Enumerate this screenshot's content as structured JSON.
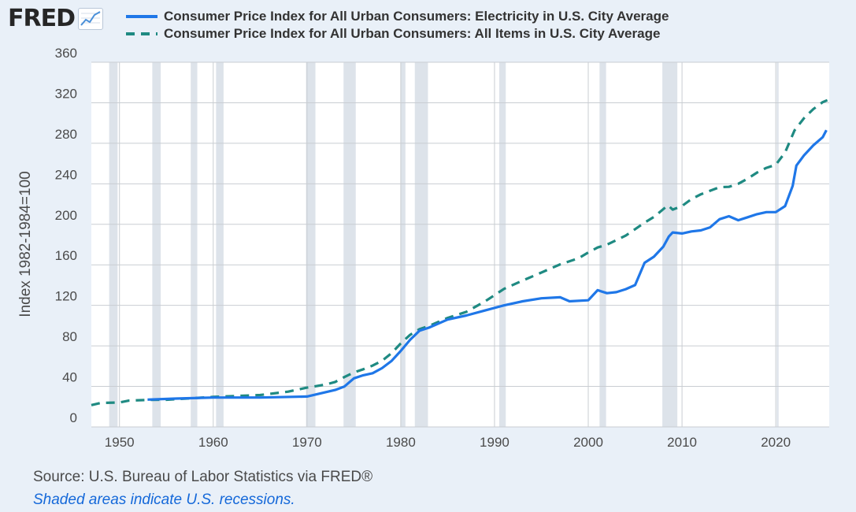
{
  "header": {
    "logo_text": "FRED",
    "logo_icon": "line-chart-icon"
  },
  "colors": {
    "electricity": "#1f77e8",
    "all_items": "#1f8a82",
    "recession_shade": "#dde3ea",
    "grid": "#c9cdd2"
  },
  "chart_data": {
    "type": "line",
    "ylabel": "Index 1982-1984=100",
    "ylim": [
      0,
      360
    ],
    "xlim": [
      1947,
      2025.7
    ],
    "y_ticks": [
      "0",
      "40",
      "80",
      "120",
      "160",
      "200",
      "240",
      "280",
      "320",
      "360"
    ],
    "x_ticks": [
      "1950",
      "1960",
      "1970",
      "1980",
      "1990",
      "2000",
      "2010",
      "2020"
    ],
    "grid": true,
    "legend_position": "top",
    "recessions": [
      [
        1948.9,
        1949.8
      ],
      [
        1953.5,
        1954.4
      ],
      [
        1957.6,
        1958.3
      ],
      [
        1960.3,
        1961.1
      ],
      [
        1969.9,
        1970.9
      ],
      [
        1973.9,
        1975.2
      ],
      [
        1980.0,
        1980.5
      ],
      [
        1981.5,
        1982.9
      ],
      [
        1990.5,
        1991.2
      ],
      [
        2001.2,
        2001.9
      ],
      [
        2007.9,
        2009.5
      ],
      [
        2020.1,
        2020.3
      ]
    ],
    "series": [
      {
        "name": "Consumer Price Index for All Urban Consumers: Electricity in U.S. City Average",
        "style": "solid",
        "points": [
          [
            1953,
            27
          ],
          [
            1956,
            28
          ],
          [
            1960,
            29
          ],
          [
            1965,
            29
          ],
          [
            1970,
            30
          ],
          [
            1973,
            36.5
          ],
          [
            1974,
            40
          ],
          [
            1975,
            48
          ],
          [
            1976,
            51
          ],
          [
            1977,
            53
          ],
          [
            1978,
            58
          ],
          [
            1979,
            65
          ],
          [
            1980,
            75
          ],
          [
            1981,
            86
          ],
          [
            1982,
            95
          ],
          [
            1983,
            98
          ],
          [
            1985,
            106
          ],
          [
            1987,
            110
          ],
          [
            1989,
            115
          ],
          [
            1991,
            120
          ],
          [
            1993,
            124
          ],
          [
            1995,
            127
          ],
          [
            1997,
            128
          ],
          [
            1998,
            124
          ],
          [
            2000,
            125
          ],
          [
            2001,
            135
          ],
          [
            2002,
            132
          ],
          [
            2003,
            133
          ],
          [
            2004,
            136
          ],
          [
            2005,
            140
          ],
          [
            2006,
            162
          ],
          [
            2007,
            168
          ],
          [
            2008,
            178
          ],
          [
            2008.6,
            188
          ],
          [
            2009,
            192
          ],
          [
            2010,
            191
          ],
          [
            2011,
            193
          ],
          [
            2012,
            194
          ],
          [
            2013,
            197
          ],
          [
            2014,
            205
          ],
          [
            2015,
            208
          ],
          [
            2016,
            204
          ],
          [
            2017,
            207
          ],
          [
            2018,
            210
          ],
          [
            2019,
            212
          ],
          [
            2020,
            212
          ],
          [
            2021,
            218
          ],
          [
            2021.8,
            238
          ],
          [
            2022.2,
            258
          ],
          [
            2023,
            268
          ],
          [
            2024,
            278
          ],
          [
            2025,
            286
          ],
          [
            2025.4,
            293
          ]
        ]
      },
      {
        "name": "Consumer Price Index for All Urban Consumers: All Items in U.S. City Average",
        "style": "dashed",
        "points": [
          [
            1947,
            21.5
          ],
          [
            1948,
            23.7
          ],
          [
            1950,
            24.1
          ],
          [
            1951,
            26
          ],
          [
            1953,
            26.7
          ],
          [
            1955,
            26.8
          ],
          [
            1960,
            29.6
          ],
          [
            1965,
            31.5
          ],
          [
            1968,
            34.8
          ],
          [
            1970,
            38.8
          ],
          [
            1972,
            41.8
          ],
          [
            1973,
            44.4
          ],
          [
            1974,
            49.3
          ],
          [
            1975,
            53.8
          ],
          [
            1976,
            56.9
          ],
          [
            1977,
            60.6
          ],
          [
            1978,
            65.2
          ],
          [
            1979,
            72.6
          ],
          [
            1980,
            82.4
          ],
          [
            1981,
            90.9
          ],
          [
            1982,
            96.5
          ],
          [
            1983,
            99.6
          ],
          [
            1985,
            107.6
          ],
          [
            1987,
            113.6
          ],
          [
            1989,
            124.0
          ],
          [
            1991,
            136.2
          ],
          [
            1993,
            144.5
          ],
          [
            1995,
            152.4
          ],
          [
            1997,
            160.5
          ],
          [
            1999,
            166.6
          ],
          [
            2000,
            172.2
          ],
          [
            2001,
            177.1
          ],
          [
            2002,
            179.9
          ],
          [
            2004,
            188.9
          ],
          [
            2006,
            201.6
          ],
          [
            2007,
            207.3
          ],
          [
            2008.5,
            218.8
          ],
          [
            2009,
            214.5
          ],
          [
            2010,
            218.1
          ],
          [
            2011,
            224.9
          ],
          [
            2012,
            229.6
          ],
          [
            2014,
            236.7
          ],
          [
            2015,
            237.0
          ],
          [
            2016,
            240.0
          ],
          [
            2017,
            245.1
          ],
          [
            2018,
            251.1
          ],
          [
            2019,
            255.7
          ],
          [
            2020,
            258.8
          ],
          [
            2021,
            271.0
          ],
          [
            2022,
            292.7
          ],
          [
            2023,
            304.7
          ],
          [
            2024,
            313.7
          ],
          [
            2025,
            320.6
          ],
          [
            2025.5,
            322.5
          ]
        ]
      }
    ],
    "source": "Source: U.S. Bureau of Labor Statistics via FRED®",
    "note": "Shaded areas indicate U.S. recessions."
  }
}
